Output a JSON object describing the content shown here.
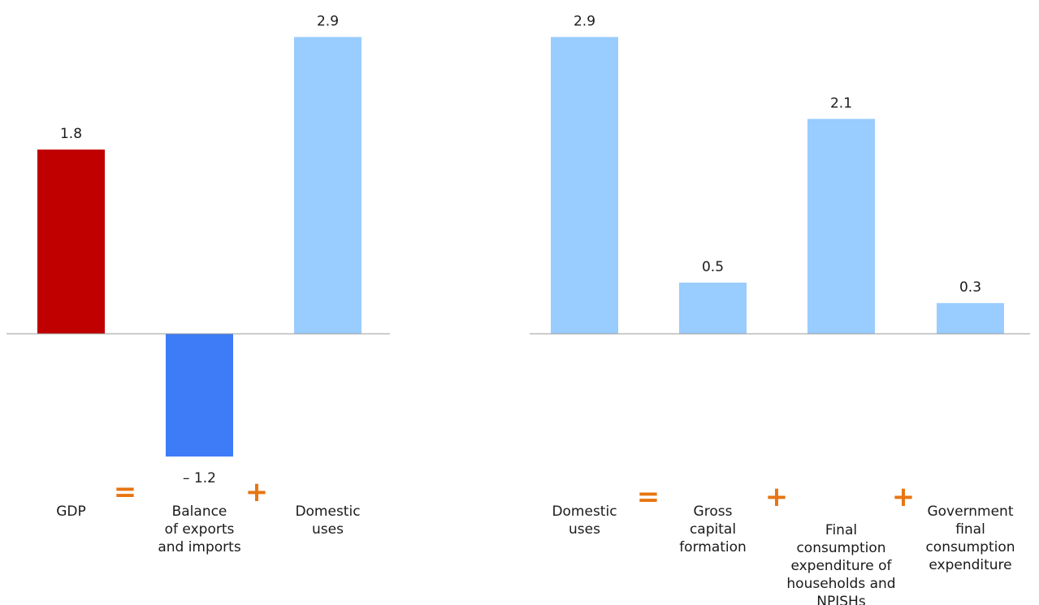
{
  "chart_data": [
    {
      "type": "bar",
      "categories": [
        [
          "GDP"
        ],
        [
          "Balance",
          "of exports",
          "and imports"
        ],
        [
          "Domestic",
          "uses"
        ]
      ],
      "values": [
        1.8,
        -1.2,
        2.9
      ],
      "value_labels": [
        "1.8",
        "– 1.2",
        "2.9"
      ],
      "operators": [
        "=",
        "+"
      ],
      "colors": [
        "#c00000",
        "#3d7bf7",
        "#99ccff"
      ],
      "ylim": [
        -1.2,
        2.9
      ]
    },
    {
      "type": "bar",
      "categories": [
        [
          "Domestic",
          "uses"
        ],
        [
          "Gross",
          "capital",
          "formation"
        ],
        [
          "Final",
          "consumption",
          "expenditure of",
          "households and",
          "NPISHs"
        ],
        [
          "Government",
          "final",
          "consumption",
          "expenditure"
        ]
      ],
      "values": [
        2.9,
        0.5,
        2.1,
        0.3
      ],
      "value_labels": [
        "2.9",
        "0.5",
        "2.1",
        "0.3"
      ],
      "operators": [
        "=",
        "+",
        "+"
      ],
      "colors": [
        "#99ccff",
        "#99ccff",
        "#99ccff",
        "#99ccff"
      ],
      "ylim": [
        0,
        2.9
      ]
    }
  ],
  "colors": {
    "operator": "#e87511",
    "baseline": "#999999"
  }
}
